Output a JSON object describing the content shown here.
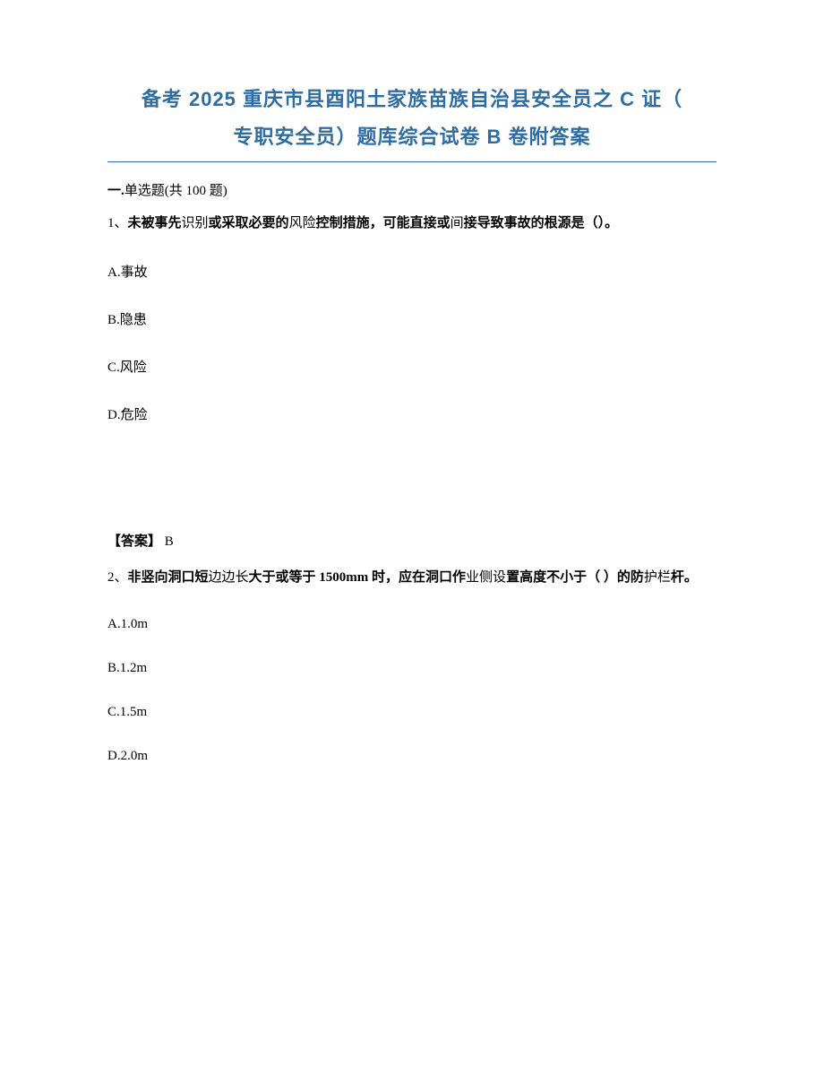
{
  "title_line1": "备考 2025 重庆市县酉阳土家族苗族自治县安全员之 C 证（",
  "title_line2": "专职安全员）题库综合试卷 B 卷附答案",
  "section_prefix": "一.",
  "section_text": "单选题(共 100 题)",
  "q1": {
    "num": "1、",
    "text_bold1": "未被事先",
    "text_plain1": "识别",
    "text_bold2": "或采取必要的",
    "text_plain2": "风险",
    "text_bold3": "控制措施，可能直接或",
    "text_plain3": "间",
    "text_bold4": "接导致事故的根源是（）。",
    "optA": "A.事故",
    "optB": "B.隐患",
    "optC": "C.风险",
    "optD": "D.危险",
    "answer_label": "【答案】",
    "answer_value": " B"
  },
  "q2": {
    "num": "2、",
    "text_bold1": "非竖向洞口短",
    "text_plain1": "边边长",
    "text_bold2": "大于或等于 1500mm 时，应在洞口作",
    "text_plain2": "业侧设",
    "text_bold3": "置高度不小于（ ）的防",
    "text_plain3": "护栏",
    "text_bold4": "杆。",
    "optA": "A.1.0m",
    "optB": "B.1.2m",
    "optC": "C.1.5m",
    "optD": "D.2.0m"
  }
}
